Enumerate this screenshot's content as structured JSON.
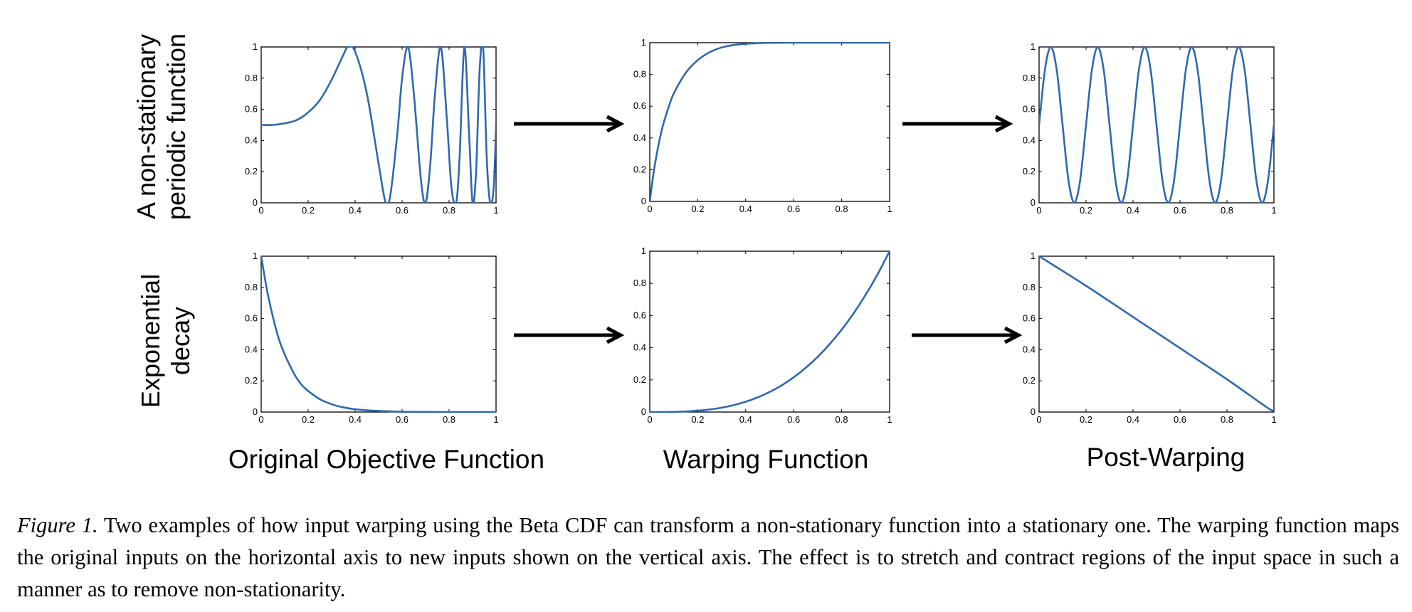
{
  "row_labels": [
    [
      "A non-stationary",
      "periodic function"
    ],
    [
      "Exponential",
      "decay"
    ]
  ],
  "column_labels": [
    "Original Objective Function",
    "Warping Function",
    "Post-Warping"
  ],
  "caption": {
    "label": "Figure 1.",
    "text": "Two examples of how input warping using the Beta CDF can transform a non-stationary function into a stationary one.  The warping function maps the original inputs on the horizontal axis to new inputs shown on the vertical axis.  The effect is to stretch and contract regions of the input space in such a manner as to remove non-stationarity."
  },
  "colors": {
    "line": "#2f68b0",
    "axis": "#000000"
  },
  "chart_data": [
    {
      "type": "line",
      "row": 1,
      "column": 1,
      "xlim": [
        0,
        1
      ],
      "ylim": [
        0,
        1
      ],
      "xticks": [
        "0",
        "0.2",
        "0.4",
        "0.6",
        "0.8",
        "1"
      ],
      "yticks": [
        "0",
        "0.2",
        "0.4",
        "0.6",
        "0.8",
        "1"
      ],
      "x": [
        0,
        0.05,
        0.1,
        0.15,
        0.2,
        0.25,
        0.3,
        0.35,
        0.37,
        0.4,
        0.45,
        0.5,
        0.53,
        0.55,
        0.58,
        0.6,
        0.625,
        0.65,
        0.68,
        0.7,
        0.72,
        0.74,
        0.765,
        0.79,
        0.81,
        0.83,
        0.845,
        0.865,
        0.885,
        0.9,
        0.915,
        0.93,
        0.945,
        0.96,
        0.975,
        0.99,
        1
      ],
      "y": [
        0.5,
        0.5,
        0.51,
        0.53,
        0.58,
        0.66,
        0.79,
        0.95,
        1,
        0.97,
        0.7,
        0.25,
        0,
        0.05,
        0.45,
        0.8,
        1,
        0.7,
        0.15,
        0,
        0.25,
        0.7,
        1,
        0.55,
        0.1,
        0,
        0.3,
        1,
        0.45,
        0,
        0.2,
        0.85,
        1,
        0.3,
        0,
        0.1,
        0.5
      ]
    },
    {
      "type": "line",
      "row": 1,
      "column": 2,
      "xlim": [
        0,
        1
      ],
      "ylim": [
        0,
        1
      ],
      "xticks": [
        "0",
        "0.2",
        "0.4",
        "0.6",
        "0.8",
        "1"
      ],
      "yticks": [
        "0",
        "0.2",
        "0.4",
        "0.6",
        "0.8",
        "1"
      ],
      "x": [
        0,
        0.02,
        0.05,
        0.08,
        0.1,
        0.15,
        0.2,
        0.25,
        0.3,
        0.35,
        0.4,
        0.45,
        0.5,
        0.6,
        0.7,
        0.8,
        0.9,
        1
      ],
      "y": [
        0,
        0.22,
        0.45,
        0.6,
        0.68,
        0.81,
        0.89,
        0.94,
        0.97,
        0.985,
        0.993,
        0.997,
        0.999,
        1,
        1,
        1,
        1,
        1
      ]
    },
    {
      "type": "line",
      "row": 1,
      "column": 3,
      "xlim": [
        0,
        1
      ],
      "ylim": [
        0,
        1
      ],
      "xticks": [
        "0",
        "0.2",
        "0.4",
        "0.6",
        "0.8",
        "1"
      ],
      "yticks": [
        "0",
        "0.2",
        "0.4",
        "0.6",
        "0.8",
        "1"
      ],
      "x": [
        0,
        0.025,
        0.05,
        0.075,
        0.1,
        0.125,
        0.15,
        0.175,
        0.2,
        0.225,
        0.25,
        0.275,
        0.3,
        0.325,
        0.35,
        0.375,
        0.4,
        0.425,
        0.45,
        0.475,
        0.5,
        0.525,
        0.55,
        0.575,
        0.6,
        0.625,
        0.65,
        0.675,
        0.7,
        0.725,
        0.75,
        0.775,
        0.8,
        0.825,
        0.85,
        0.875,
        0.9,
        0.925,
        0.95,
        0.975,
        1
      ],
      "y": [
        0.5,
        0.854,
        1,
        0.854,
        0.5,
        0.146,
        0,
        0.146,
        0.5,
        0.854,
        1,
        0.854,
        0.5,
        0.146,
        0,
        0.146,
        0.5,
        0.854,
        1,
        0.854,
        0.5,
        0.146,
        0,
        0.146,
        0.5,
        0.854,
        1,
        0.854,
        0.5,
        0.146,
        0,
        0.146,
        0.5,
        0.854,
        1,
        0.854,
        0.5,
        0.146,
        0,
        0.146,
        0.5
      ]
    },
    {
      "type": "line",
      "row": 2,
      "column": 1,
      "xlim": [
        0,
        1
      ],
      "ylim": [
        0,
        1
      ],
      "xticks": [
        "0",
        "0.2",
        "0.4",
        "0.6",
        "0.8",
        "1"
      ],
      "yticks": [
        "0",
        "0.2",
        "0.4",
        "0.6",
        "0.8",
        "1"
      ],
      "x": [
        0,
        0.025,
        0.05,
        0.075,
        0.1,
        0.125,
        0.15,
        0.175,
        0.2,
        0.25,
        0.3,
        0.35,
        0.4,
        0.45,
        0.5,
        0.6,
        0.7,
        0.8,
        0.9,
        1
      ],
      "y": [
        1,
        0.78,
        0.61,
        0.47,
        0.37,
        0.29,
        0.22,
        0.17,
        0.135,
        0.082,
        0.05,
        0.03,
        0.018,
        0.011,
        0.007,
        0.002,
        0.001,
        0,
        0,
        0
      ]
    },
    {
      "type": "line",
      "row": 2,
      "column": 2,
      "xlim": [
        0,
        1
      ],
      "ylim": [
        0,
        1
      ],
      "xticks": [
        "0",
        "0.2",
        "0.4",
        "0.6",
        "0.8",
        "1"
      ],
      "yticks": [
        "0",
        "0.2",
        "0.4",
        "0.6",
        "0.8",
        "1"
      ],
      "x": [
        0,
        0.1,
        0.2,
        0.25,
        0.3,
        0.35,
        0.4,
        0.45,
        0.5,
        0.55,
        0.6,
        0.65,
        0.7,
        0.75,
        0.8,
        0.85,
        0.9,
        0.95,
        1
      ],
      "y": [
        0,
        0.001,
        0.008,
        0.016,
        0.027,
        0.043,
        0.064,
        0.091,
        0.125,
        0.166,
        0.216,
        0.275,
        0.343,
        0.422,
        0.512,
        0.614,
        0.729,
        0.857,
        1
      ]
    },
    {
      "type": "line",
      "row": 2,
      "column": 3,
      "xlim": [
        0,
        1
      ],
      "ylim": [
        0,
        1
      ],
      "xticks": [
        "0",
        "0.2",
        "0.4",
        "0.6",
        "0.8",
        "1"
      ],
      "yticks": [
        "0",
        "0.2",
        "0.4",
        "0.6",
        "0.8",
        "1"
      ],
      "x": [
        0,
        0.2,
        0.4,
        0.6,
        0.8,
        0.97,
        1
      ],
      "y": [
        1,
        0.81,
        0.61,
        0.41,
        0.21,
        0.03,
        0.01
      ]
    }
  ]
}
